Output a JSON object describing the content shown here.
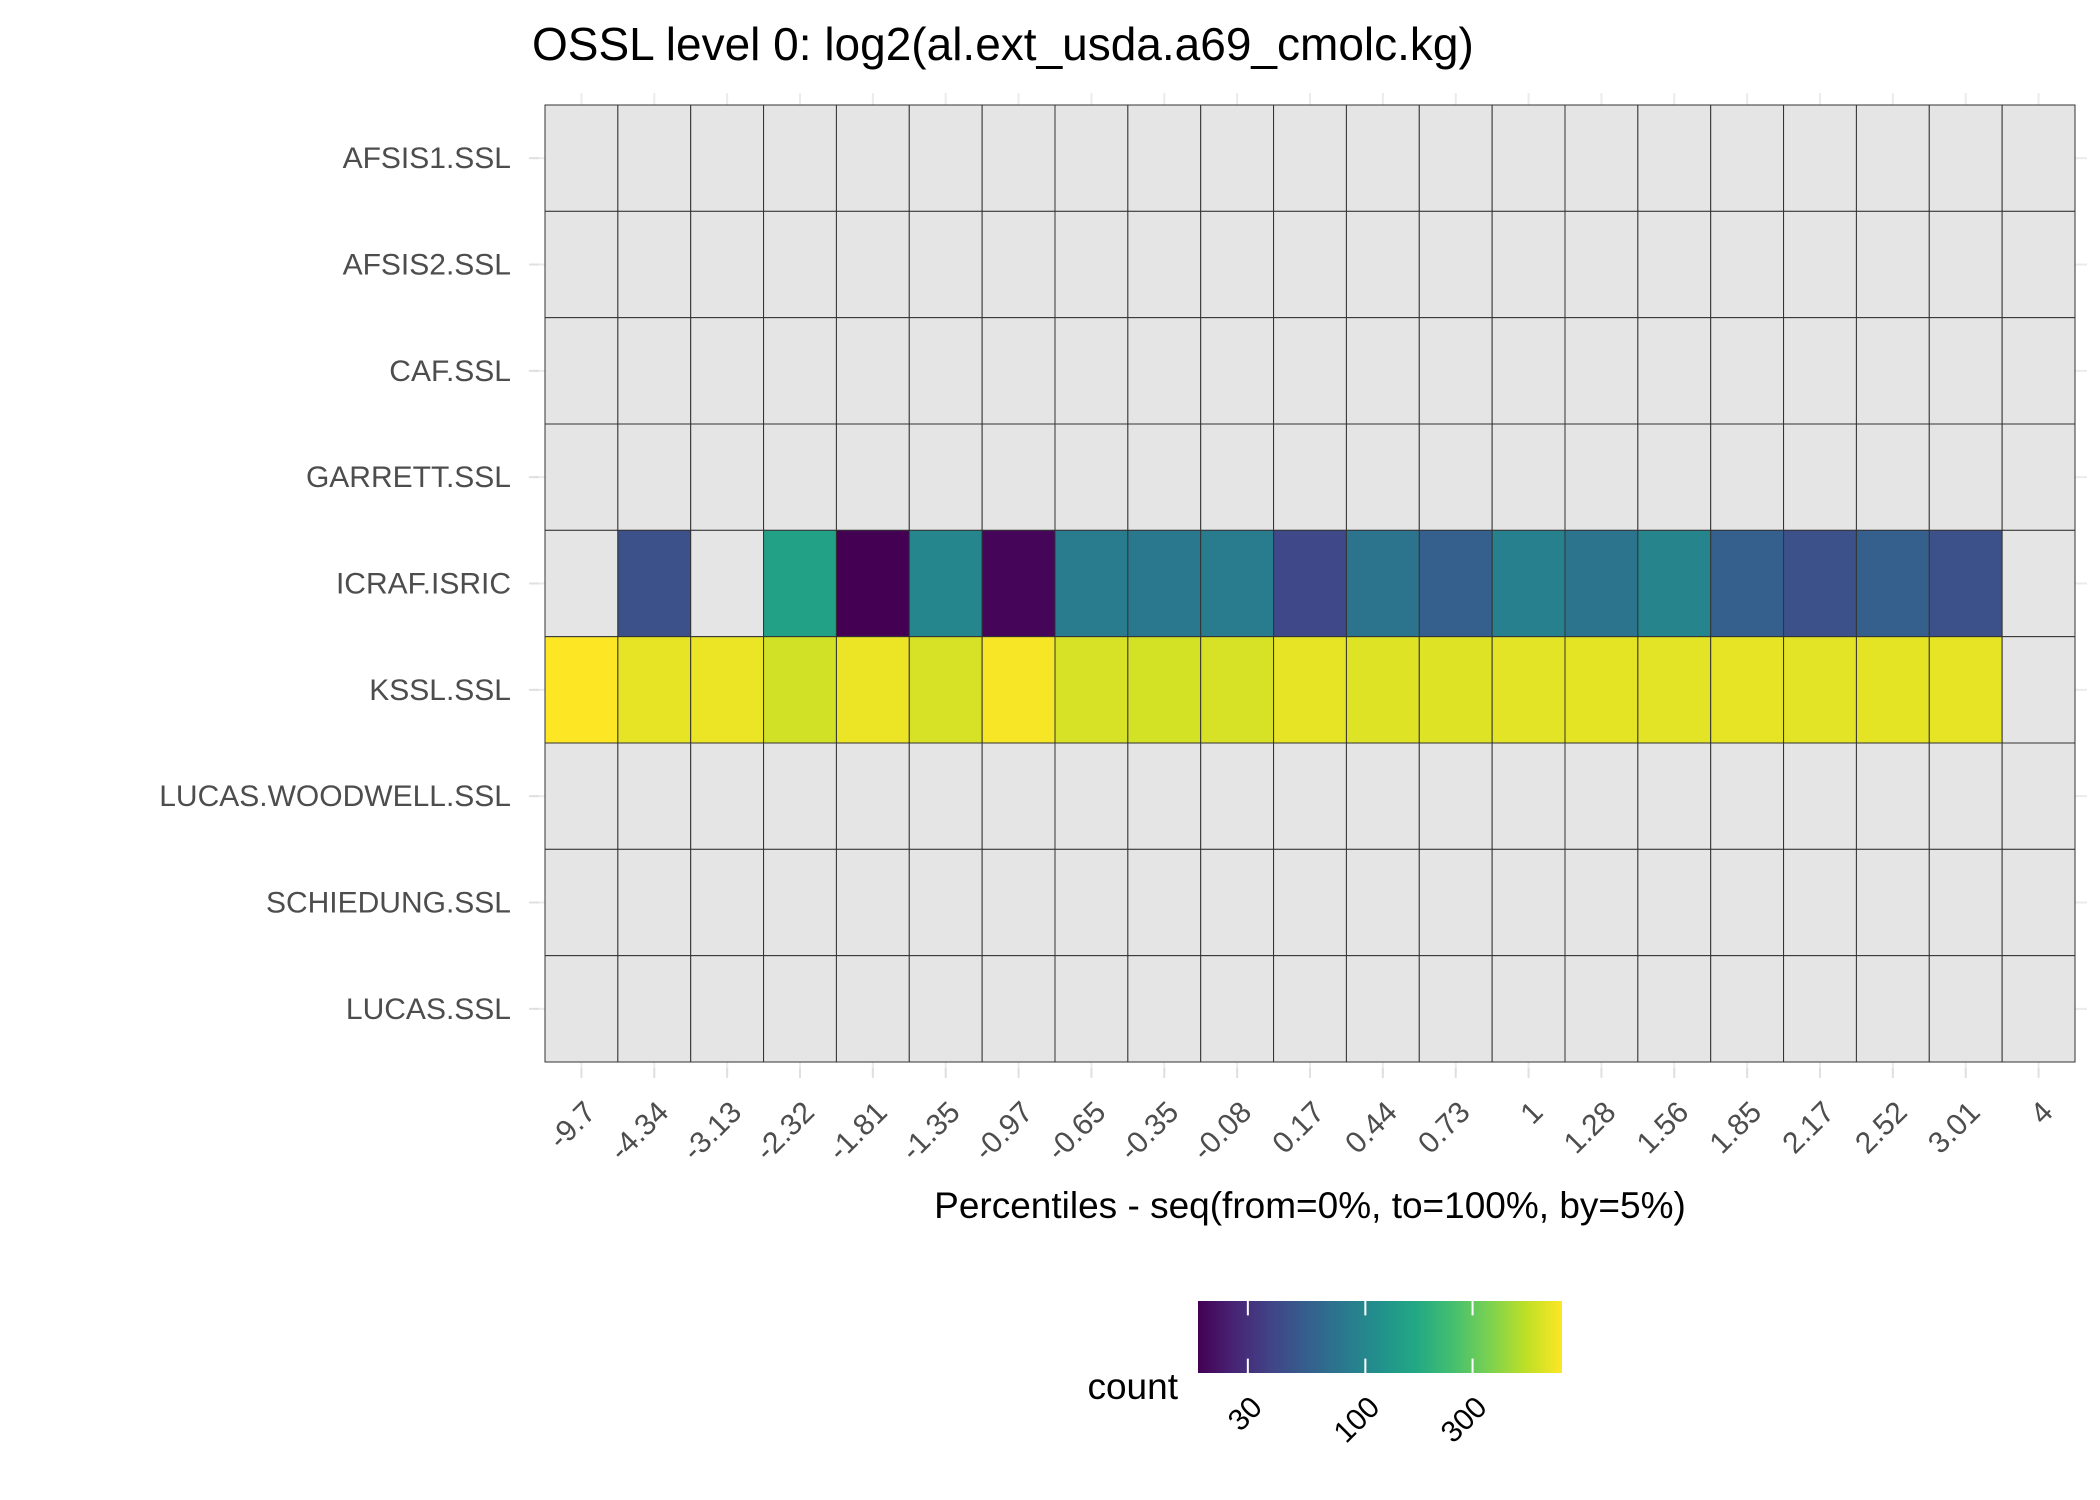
{
  "chart_data": {
    "type": "heatmap",
    "title": "OSSL level 0: log2(al.ext_usda.a69_cmolc.kg)",
    "xlabel": "Percentiles - seq(from=0%, to=100%, by=5%)",
    "ylabel": "",
    "x_categories": [
      "-9.7",
      "-4.34",
      "-3.13",
      "-2.32",
      "-1.81",
      "-1.35",
      "-0.97",
      "-0.65",
      "-0.35",
      "-0.08",
      "0.17",
      "0.44",
      "0.73",
      "1",
      "1.28",
      "1.56",
      "1.85",
      "2.17",
      "2.52",
      "3.01",
      "4"
    ],
    "y_categories": [
      "AFSIS1.SSL",
      "AFSIS2.SSL",
      "CAF.SSL",
      "GARRETT.SSL",
      "ICRAF.ISRIC",
      "KSSL.SSL",
      "LUCAS.WOODWELL.SSL",
      "SCHIEDUNG.SSL",
      "LUCAS.SSL"
    ],
    "values": [
      [
        null,
        null,
        null,
        null,
        null,
        null,
        null,
        null,
        null,
        null,
        null,
        null,
        null,
        null,
        null,
        null,
        null,
        null,
        null,
        null,
        null
      ],
      [
        null,
        null,
        null,
        null,
        null,
        null,
        null,
        null,
        null,
        null,
        null,
        null,
        null,
        null,
        null,
        null,
        null,
        null,
        null,
        null,
        null
      ],
      [
        null,
        null,
        null,
        null,
        null,
        null,
        null,
        null,
        null,
        null,
        null,
        null,
        null,
        null,
        null,
        null,
        null,
        null,
        null,
        null,
        null
      ],
      [
        null,
        null,
        null,
        null,
        null,
        null,
        null,
        null,
        null,
        null,
        null,
        null,
        null,
        null,
        null,
        null,
        null,
        null,
        null,
        null,
        null
      ],
      [
        null,
        45,
        null,
        150,
        18,
        100,
        19,
        85,
        80,
        85,
        40,
        75,
        55,
        90,
        75,
        95,
        55,
        45,
        55,
        45,
        null
      ],
      [
        750,
        660,
        680,
        580,
        680,
        600,
        720,
        600,
        590,
        600,
        660,
        630,
        630,
        640,
        650,
        640,
        660,
        640,
        650,
        660,
        null
      ],
      [
        null,
        null,
        null,
        null,
        null,
        null,
        null,
        null,
        null,
        null,
        null,
        null,
        null,
        null,
        null,
        null,
        null,
        null,
        null,
        null,
        null
      ],
      [
        null,
        null,
        null,
        null,
        null,
        null,
        null,
        null,
        null,
        null,
        null,
        null,
        null,
        null,
        null,
        null,
        null,
        null,
        null,
        null,
        null
      ],
      [
        null,
        null,
        null,
        null,
        null,
        null,
        null,
        null,
        null,
        null,
        null,
        null,
        null,
        null,
        null,
        null,
        null,
        null,
        null,
        null,
        null
      ]
    ],
    "na_color": "#e5e5e5",
    "color_scale": "viridis",
    "color_scale_type": "log",
    "color_range": [
      18,
      750
    ],
    "legend": {
      "title": "count",
      "position": "bottom",
      "ticks": [
        30,
        100,
        300
      ],
      "tick_labels": [
        "30",
        "100",
        "300"
      ]
    },
    "grid": true
  }
}
